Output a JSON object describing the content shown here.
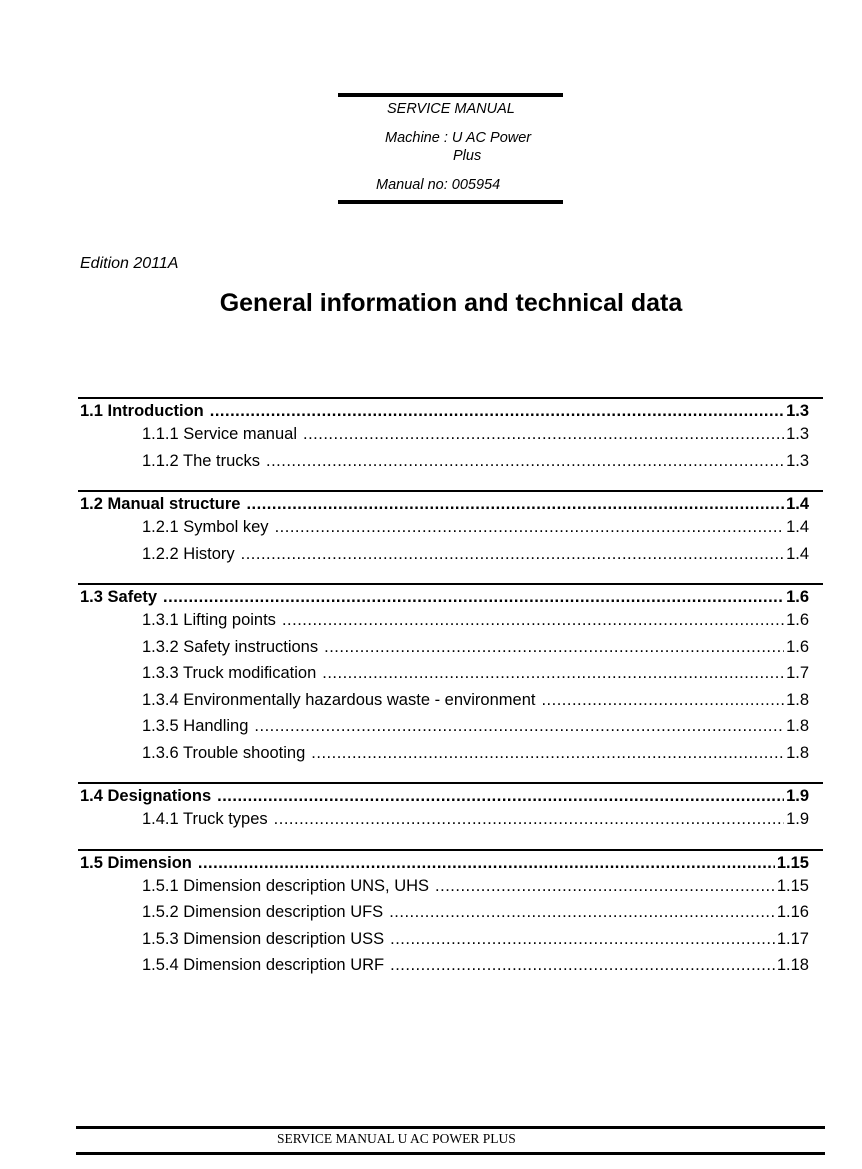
{
  "header": {
    "line1": "SERVICE MANUAL",
    "machine_label": "Machine : U AC Power",
    "machine_cont": "Plus",
    "manual_no": "Manual no: 005954"
  },
  "edition": "Edition 2011A",
  "title": "General information and technical data",
  "toc": [
    {
      "label": "1.1 Introduction",
      "page": "1.3",
      "items": [
        {
          "label": "1.1.1 Service manual",
          "page": "1.3"
        },
        {
          "label": "1.1.2 The trucks",
          "page": "1.3"
        }
      ]
    },
    {
      "label": "1.2 Manual structure",
      "page": "1.4",
      "items": [
        {
          "label": "1.2.1 Symbol key",
          "page": "1.4"
        },
        {
          "label": "1.2.2 History",
          "page": "1.4"
        }
      ]
    },
    {
      "label": "1.3 Safety",
      "page": "1.6",
      "items": [
        {
          "label": "1.3.1 Lifting points",
          "page": "1.6"
        },
        {
          "label": "1.3.2 Safety instructions",
          "page": "1.6"
        },
        {
          "label": "1.3.3 Truck modification",
          "page": "1.7"
        },
        {
          "label": "1.3.4 Environmentally hazardous waste - environment",
          "page": "1.8"
        },
        {
          "label": "1.3.5 Handling",
          "page": "1.8"
        },
        {
          "label": "1.3.6 Trouble shooting",
          "page": "1.8"
        }
      ]
    },
    {
      "label": "1.4 Designations",
      "page": "1.9",
      "items": [
        {
          "label": "1.4.1 Truck types",
          "page": "1.9"
        }
      ]
    },
    {
      "label": "1.5 Dimension",
      "page": "1.15",
      "items": [
        {
          "label": "1.5.1 Dimension description UNS, UHS",
          "page": "1.15"
        },
        {
          "label": "1.5.2 Dimension description UFS",
          "page": "1.16"
        },
        {
          "label": "1.5.3 Dimension description USS",
          "page": "1.17"
        },
        {
          "label": "1.5.4 Dimension description URF",
          "page": "1.18"
        }
      ]
    }
  ],
  "footer": "SERVICE MANUAL U AC POWER PLUS"
}
